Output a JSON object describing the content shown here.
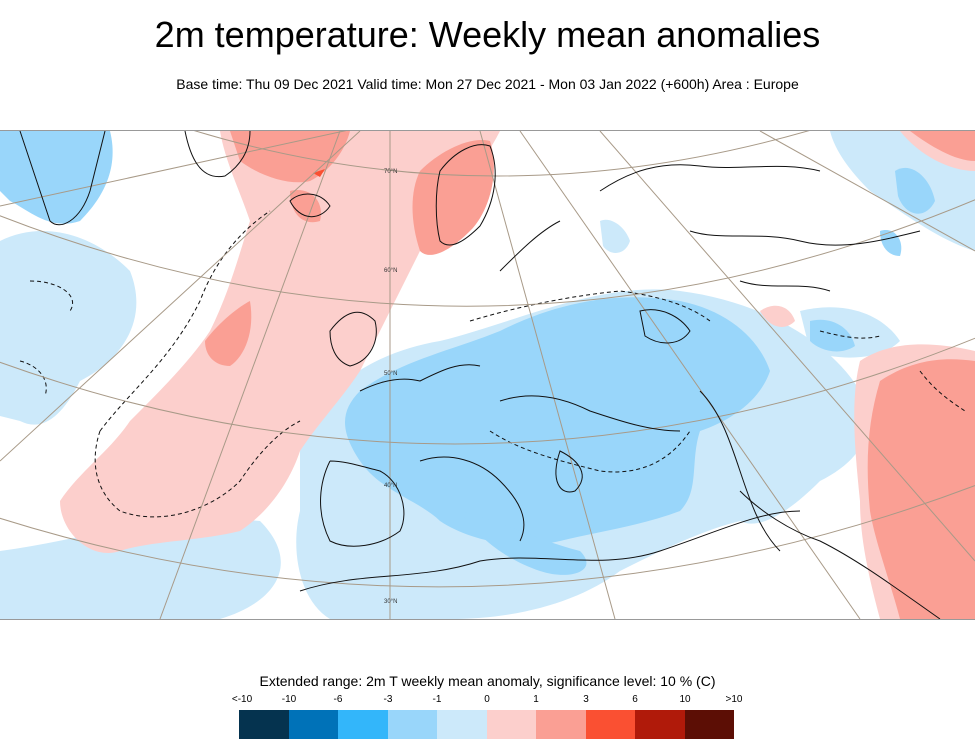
{
  "title": "2m temperature: Weekly mean anomalies",
  "subtitle": "Base time: Thu 09 Dec 2021 Valid time: Mon 27 Dec 2021 - Mon 03 Jan 2022 (+600h) Area : Europe",
  "map": {
    "latitude_labels": [
      "70°N",
      "60°N",
      "50°N",
      "40°N",
      "30°N"
    ]
  },
  "legend": {
    "title": "Extended range: 2m T weekly mean anomaly, significance level: 10 % (C)",
    "ticks": [
      "<-10",
      "-10",
      "-6",
      "-3",
      "-1",
      "0",
      "1",
      "3",
      "6",
      "10",
      ">10"
    ],
    "colors": [
      "#05334f",
      "#0072b8",
      "#33b6fa",
      "#99d6fa",
      "#cce9fa",
      "#fccfcc",
      "#fa9f94",
      "#fa5032",
      "#b01a0a",
      "#5c0e05"
    ]
  }
}
